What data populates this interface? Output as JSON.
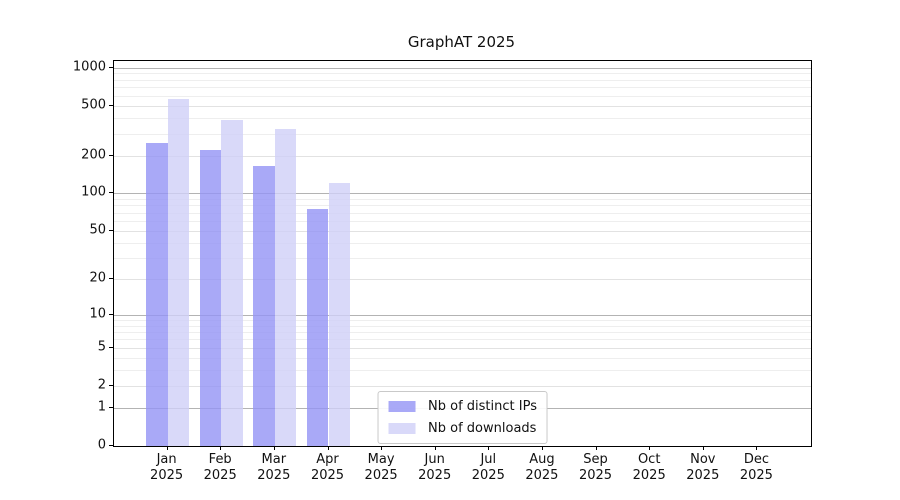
{
  "chart_data": {
    "type": "bar",
    "title": "GraphAT 2025",
    "x_axis": {
      "year": "2025",
      "months": [
        "Jan",
        "Feb",
        "Mar",
        "Apr",
        "May",
        "Jun",
        "Jul",
        "Aug",
        "Sep",
        "Oct",
        "Nov",
        "Dec"
      ]
    },
    "y_axis": {
      "scale": "log1p",
      "tick_values": [
        0,
        1,
        2,
        5,
        10,
        20,
        50,
        100,
        200,
        500,
        1000
      ],
      "tick_labels": [
        "0",
        "1",
        "2",
        "5",
        "10",
        "20",
        "50",
        "100",
        "200",
        "500",
        "1000"
      ],
      "top_value": 1130
    },
    "series": [
      {
        "name": "Nb of distinct IPs",
        "color": "rgba(148,148,245,0.8)",
        "color_hex": "#a9a9f7",
        "values": [
          250,
          220,
          165,
          75,
          null,
          null,
          null,
          null,
          null,
          null,
          null,
          null
        ]
      },
      {
        "name": "Nb of downloads",
        "color": "rgba(208,208,248,0.8)",
        "color_hex": "#d9d9f9",
        "values": [
          560,
          385,
          325,
          120,
          null,
          null,
          null,
          null,
          null,
          null,
          null,
          null
        ]
      }
    ],
    "legend": {
      "position": "lower-center"
    },
    "grid": {
      "horizontal": true,
      "vertical": false,
      "major_decades": [
        1,
        10,
        100,
        1000
      ],
      "minor_multipliers": [
        3,
        4,
        6,
        7,
        8,
        9
      ]
    }
  }
}
